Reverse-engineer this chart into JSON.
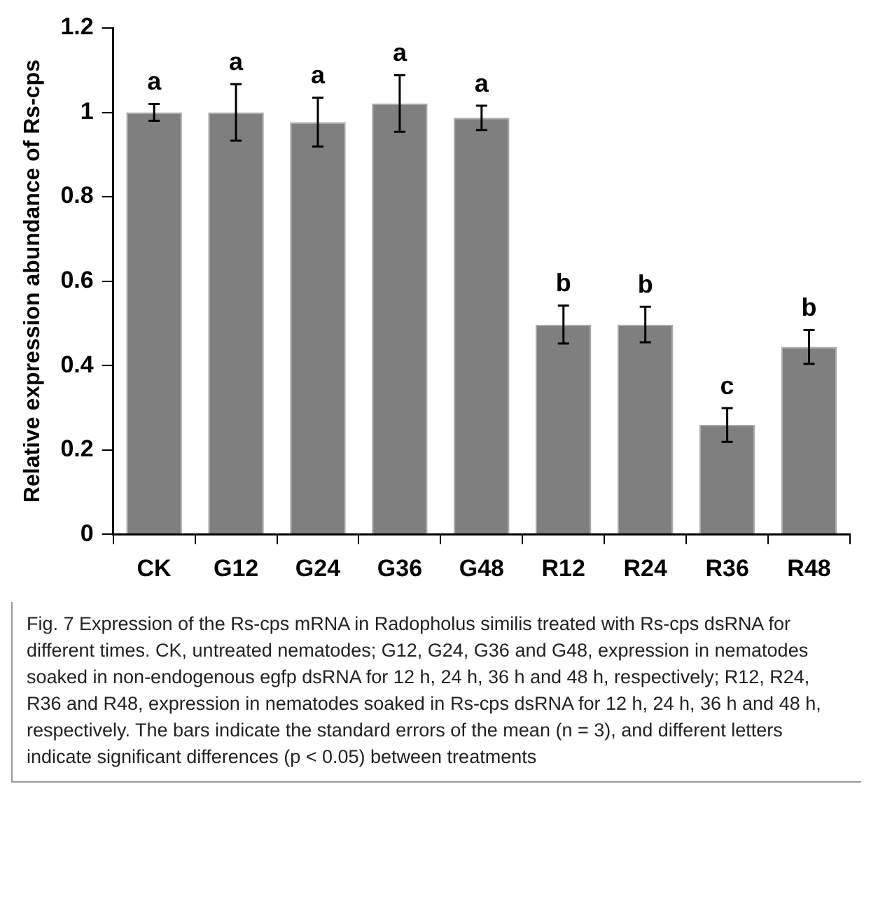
{
  "chart_data": {
    "type": "bar",
    "ylabel": "Relative expression abundance of Rs-cps",
    "categories": [
      "CK",
      "G12",
      "G24",
      "G36",
      "G48",
      "R12",
      "R24",
      "R36",
      "R48"
    ],
    "values": [
      1.0,
      1.0,
      0.977,
      1.021,
      0.987,
      0.497,
      0.497,
      0.259,
      0.444
    ],
    "errors": [
      0.02,
      0.067,
      0.058,
      0.067,
      0.029,
      0.045,
      0.042,
      0.04,
      0.04
    ],
    "color": "#7f7f7f",
    "ylim": [
      0,
      1.2
    ],
    "yticks": [
      0,
      0.2,
      0.4,
      0.6,
      0.8,
      1,
      1.2
    ],
    "grid": false,
    "legend": false,
    "value_labels": [
      "a",
      "a",
      "a",
      "a",
      "a",
      "b",
      "b",
      "c",
      "b"
    ],
    "annotations": [
      "Fig. 7  Expression of the Rs-cps mRNA in Radopholus similis treated with Rs-cps dsRNA for different times. CK, untreated nematodes; G12, G24, G36 and G48, expression in nematodes soaked in non-endogenous egfp dsRNA for 12 h, 24 h, 36 h and 48 h, respectively; R12, R24, R36 and R48, expression in nematodes soaked in Rs-cps dsRNA for 12 h, 24 h, 36 h and 48 h, respectively. The bars indicate the standard errors of the mean (n = 3), and different letters indicate significant differences (p < 0.05) between treatments"
    ]
  }
}
